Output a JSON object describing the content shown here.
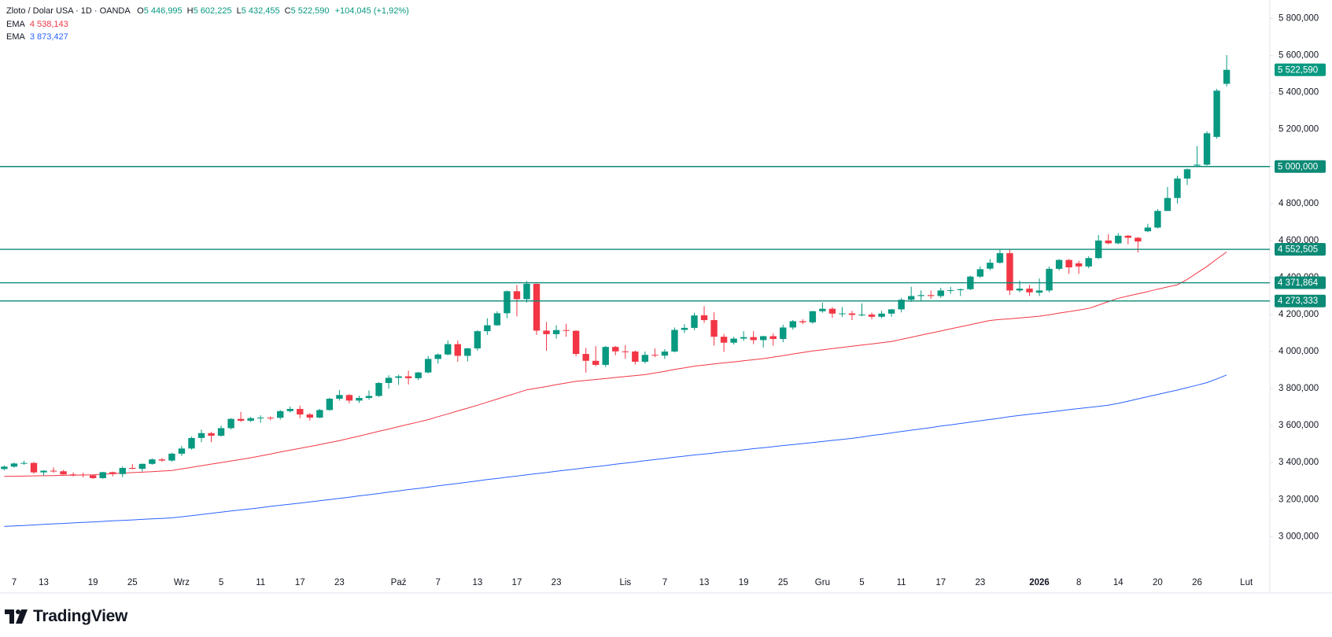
{
  "chart_data": {
    "type": "candlestick",
    "legend": {
      "title": "Zloto / Dolar USA · 1D · OANDA",
      "ohlc": [
        {
          "key": "O",
          "value": "5 446,995"
        },
        {
          "key": "H",
          "value": "5 602,225"
        },
        {
          "key": "L",
          "value": "5 432,455"
        },
        {
          "key": "C",
          "value": "5 522,590"
        }
      ],
      "change": "+104,045 (+1,92%)"
    },
    "categories": [
      null,
      "7",
      null,
      null,
      "13",
      null,
      null,
      null,
      null,
      "19",
      null,
      null,
      null,
      "25",
      null,
      null,
      null,
      null,
      "Wrz",
      null,
      null,
      null,
      "5",
      null,
      null,
      null,
      "11",
      null,
      null,
      null,
      "17",
      null,
      null,
      null,
      "23",
      null,
      null,
      null,
      null,
      null,
      "Paź",
      null,
      null,
      null,
      "7",
      null,
      null,
      null,
      "13",
      null,
      null,
      null,
      "17",
      null,
      null,
      null,
      "23",
      null,
      null,
      null,
      null,
      null,
      null,
      "Lis",
      null,
      null,
      null,
      "7",
      null,
      null,
      null,
      "13",
      null,
      null,
      null,
      "19",
      null,
      null,
      null,
      "25",
      null,
      null,
      null,
      "Gru",
      null,
      null,
      null,
      "5",
      null,
      null,
      null,
      "11",
      null,
      null,
      null,
      "17",
      null,
      null,
      null,
      "23",
      null,
      null,
      null,
      null,
      null,
      "2026",
      null,
      null,
      null,
      "8",
      null,
      null,
      null,
      "14",
      null,
      null,
      null,
      "20",
      null,
      null,
      null,
      "26",
      null,
      null,
      null,
      null,
      "Lut"
    ],
    "open": [
      3365,
      3378,
      3396,
      3398,
      3347,
      3356,
      3353,
      3336,
      3335,
      3331,
      3316,
      3348,
      3338,
      3371,
      3366,
      3393,
      3417,
      3411,
      3448,
      3476,
      3533,
      3559,
      3545,
      3586,
      3636,
      3626,
      3640,
      3643,
      3642,
      3678,
      3690,
      3660,
      3643,
      3684,
      3745,
      3765,
      3735,
      3749,
      3760,
      3830,
      3858,
      3866,
      3856,
      3887,
      3960,
      3984,
      4040,
      3977,
      4017,
      4110,
      4142,
      4207,
      4326,
      4283,
      4366,
      4113,
      4094,
      4116,
      4112,
      3987,
      3950,
      3928,
      4025,
      4001,
      4000,
      3945,
      3982,
      3978,
      4000,
      4117,
      4128,
      4196,
      4170,
      4080,
      4048,
      4070,
      4078,
      4062,
      4083,
      4068,
      4130,
      4164,
      4158,
      4218,
      4231,
      4205,
      4206,
      4198,
      4200,
      4188,
      4205,
      4228,
      4280,
      4300,
      4305,
      4300,
      4330,
      4332,
      4337,
      4405,
      4448,
      4480,
      4532,
      4330,
      4340,
      4318,
      4330,
      4447,
      4495,
      4477,
      4460,
      4505,
      4600,
      4585,
      4626,
      4615,
      4650,
      4670,
      4760,
      4830,
      4935,
      5005,
      5010,
      5160,
      5446.995,
      null,
      null
    ],
    "high": [
      3385,
      3400,
      3409,
      3403,
      3358,
      3374,
      3360,
      3347,
      3345,
      3334,
      3350,
      3351,
      3378,
      3392,
      3395,
      3423,
      3425,
      3453,
      3490,
      3540,
      3578,
      3566,
      3600,
      3640,
      3674,
      3647,
      3655,
      3650,
      3684,
      3703,
      3708,
      3668,
      3690,
      3750,
      3792,
      3770,
      3761,
      3790,
      3835,
      3872,
      3875,
      3897,
      3890,
      3976,
      3990,
      4060,
      4059,
      4020,
      4116,
      4180,
      4218,
      4330,
      4360,
      4381,
      4367,
      4160,
      4142,
      4150,
      4115,
      4020,
      4030,
      4030,
      4030,
      4035,
      4006,
      4000,
      4017,
      4013,
      4130,
      4148,
      4210,
      4245,
      4212,
      4095,
      4080,
      4110,
      4110,
      4085,
      4098,
      4145,
      4170,
      4175,
      4220,
      4264,
      4240,
      4240,
      4220,
      4260,
      4210,
      4220,
      4230,
      4290,
      4350,
      4330,
      4330,
      4345,
      4350,
      4340,
      4410,
      4460,
      4500,
      4550,
      4550,
      4383,
      4360,
      4395,
      4460,
      4500,
      4500,
      4490,
      4515,
      4630,
      4635,
      4640,
      4630,
      4618,
      4690,
      4770,
      4890,
      4950,
      4990,
      5110,
      5190,
      5420,
      5602.225,
      null,
      null
    ],
    "low": [
      3358,
      3372,
      3388,
      3340,
      3330,
      3345,
      3335,
      3325,
      3320,
      3311,
      3312,
      3325,
      3321,
      3364,
      3352,
      3388,
      3405,
      3404,
      3436,
      3470,
      3510,
      3510,
      3540,
      3578,
      3620,
      3619,
      3615,
      3628,
      3632,
      3670,
      3640,
      3627,
      3640,
      3680,
      3735,
      3720,
      3722,
      3740,
      3755,
      3800,
      3820,
      3822,
      3845,
      3882,
      3935,
      3980,
      3944,
      3947,
      4005,
      4090,
      4140,
      4180,
      4190,
      4265,
      4090,
      4004,
      4070,
      4080,
      3975,
      3886,
      3920,
      3916,
      3980,
      3962,
      3930,
      3935,
      3970,
      3960,
      3996,
      4100,
      4116,
      4155,
      4032,
      3998,
      4038,
      4058,
      4040,
      4022,
      4032,
      4050,
      4118,
      4148,
      4150,
      4210,
      4182,
      4187,
      4170,
      4190,
      4175,
      4180,
      4188,
      4212,
      4268,
      4270,
      4285,
      4290,
      4312,
      4300,
      4332,
      4398,
      4440,
      4475,
      4306,
      4320,
      4300,
      4300,
      4320,
      4438,
      4420,
      4420,
      4450,
      4500,
      4580,
      4580,
      4580,
      4535,
      4645,
      4665,
      4760,
      4800,
      4900,
      5000,
      5005,
      5150,
      5432.455,
      null,
      null
    ],
    "close": [
      3378,
      3395,
      3398,
      3347,
      3356,
      3353,
      3336,
      3335,
      3331,
      3316,
      3348,
      3338,
      3371,
      3366,
      3393,
      3417,
      3411,
      3448,
      3476,
      3533,
      3559,
      3545,
      3586,
      3636,
      3626,
      3640,
      3643,
      3642,
      3678,
      3690,
      3660,
      3643,
      3684,
      3745,
      3765,
      3735,
      3749,
      3760,
      3830,
      3858,
      3866,
      3856,
      3887,
      3960,
      3984,
      4040,
      3977,
      4017,
      4110,
      4142,
      4207,
      4326,
      4283,
      4366,
      4113,
      4094,
      4116,
      4112,
      3987,
      3950,
      3928,
      4025,
      4001,
      4000,
      3945,
      3982,
      3978,
      4000,
      4117,
      4128,
      4195,
      4170,
      4080,
      4048,
      4070,
      4078,
      4062,
      4083,
      4068,
      4130,
      4164,
      4158,
      4218,
      4231,
      4205,
      4206,
      4198,
      4200,
      4188,
      4205,
      4228,
      4280,
      4300,
      4305,
      4300,
      4330,
      4332,
      4337,
      4405,
      4445,
      4480,
      4532,
      4330,
      4340,
      4320,
      4330,
      4447,
      4495,
      4455,
      4460,
      4505,
      4600,
      4585,
      4626,
      4615,
      4595,
      4670,
      4760,
      4830,
      4935,
      4985,
      5010,
      5180,
      5410,
      5522.59,
      null,
      null
    ],
    "up_color": "#089981",
    "down_color": "#f23645",
    "series": [
      {
        "name": "EMA",
        "color": "#f23645",
        "value_label": "4 538,143",
        "values": [
          3325,
          3326,
          3327,
          3328,
          3329,
          3330,
          3331,
          3332,
          3333,
          3334,
          3337,
          3340,
          3343,
          3346,
          3348,
          3351,
          3354,
          3357,
          3366,
          3374,
          3383,
          3392,
          3400,
          3409,
          3417,
          3426,
          3436,
          3446,
          3457,
          3467,
          3477,
          3487,
          3497,
          3508,
          3518,
          3531,
          3543,
          3556,
          3569,
          3581,
          3594,
          3607,
          3619,
          3632,
          3648,
          3663,
          3679,
          3694,
          3710,
          3727,
          3743,
          3760,
          3776,
          3793,
          3802,
          3811,
          3821,
          3830,
          3839,
          3844,
          3849,
          3854,
          3860,
          3865,
          3870,
          3875,
          3884,
          3893,
          3903,
          3912,
          3921,
          3927,
          3933,
          3939,
          3944,
          3950,
          3956,
          3962,
          3970,
          3978,
          3987,
          3995,
          4003,
          4009,
          4016,
          4022,
          4029,
          4035,
          4041,
          4048,
          4054,
          4066,
          4077,
          4089,
          4100,
          4111,
          4123,
          4134,
          4145,
          4157,
          4168,
          4173,
          4177,
          4182,
          4186,
          4191,
          4199,
          4208,
          4216,
          4224,
          4233,
          4251,
          4270,
          4288,
          4300,
          4312,
          4324,
          4337,
          4349,
          4361,
          4390,
          4425,
          4460,
          4500,
          4538.143,
          null,
          null
        ]
      },
      {
        "name": "EMA",
        "color": "#2962ff",
        "value_label": "3 873,427",
        "values": [
          3055,
          3058,
          3060,
          3063,
          3066,
          3069,
          3071,
          3074,
          3077,
          3079,
          3082,
          3085,
          3087,
          3090,
          3093,
          3096,
          3098,
          3101,
          3107,
          3113,
          3119,
          3126,
          3132,
          3138,
          3144,
          3150,
          3156,
          3163,
          3169,
          3175,
          3181,
          3187,
          3194,
          3200,
          3206,
          3213,
          3220,
          3226,
          3233,
          3240,
          3247,
          3254,
          3260,
          3267,
          3274,
          3281,
          3287,
          3294,
          3301,
          3308,
          3314,
          3321,
          3327,
          3334,
          3340,
          3346,
          3353,
          3359,
          3365,
          3372,
          3378,
          3384,
          3391,
          3397,
          3403,
          3410,
          3416,
          3422,
          3429,
          3435,
          3441,
          3446,
          3452,
          3458,
          3463,
          3469,
          3475,
          3480,
          3486,
          3492,
          3497,
          3503,
          3508,
          3514,
          3520,
          3525,
          3531,
          3538,
          3546,
          3553,
          3560,
          3568,
          3575,
          3582,
          3589,
          3597,
          3604,
          3611,
          3619,
          3626,
          3633,
          3640,
          3648,
          3655,
          3661,
          3667,
          3673,
          3679,
          3686,
          3692,
          3698,
          3704,
          3710,
          3720,
          3732,
          3744,
          3756,
          3768,
          3780,
          3792,
          3805,
          3818,
          3832,
          3852,
          3873.427,
          null,
          null
        ]
      }
    ],
    "levels": [
      {
        "value": 5000,
        "label": "5 000,000"
      },
      {
        "value": 4552.505,
        "label": "4 552,505"
      },
      {
        "value": 4371.864,
        "label": "4 371,864"
      },
      {
        "value": 4273.333,
        "label": "4 273,333"
      }
    ],
    "level_color": "#0c8a76",
    "last_price": {
      "value": 5522.59,
      "label": "5 522,590"
    },
    "ylim": [
      2810,
      5900
    ],
    "yticks": [
      {
        "value": 3000,
        "label": "3 000,000"
      },
      {
        "value": 3200,
        "label": "3 200,000"
      },
      {
        "value": 3400,
        "label": "3 400,000"
      },
      {
        "value": 3600,
        "label": "3 600,000"
      },
      {
        "value": 3800,
        "label": "3 800,000"
      },
      {
        "value": 4000,
        "label": "4 000,000"
      },
      {
        "value": 4200,
        "label": "4 200,000"
      },
      {
        "value": 4400,
        "label": "4 400,000"
      },
      {
        "value": 4600,
        "label": "4 600,000"
      },
      {
        "value": 4800,
        "label": "4 800,000"
      },
      {
        "value": 5000,
        "label": "5 000,000"
      },
      {
        "value": 5200,
        "label": "5 200,000"
      },
      {
        "value": 5400,
        "label": "5 400,000"
      },
      {
        "value": 5600,
        "label": "5 600,000"
      },
      {
        "value": 5800,
        "label": "5 800,000"
      }
    ],
    "grid": false
  },
  "brand": "TradingView"
}
